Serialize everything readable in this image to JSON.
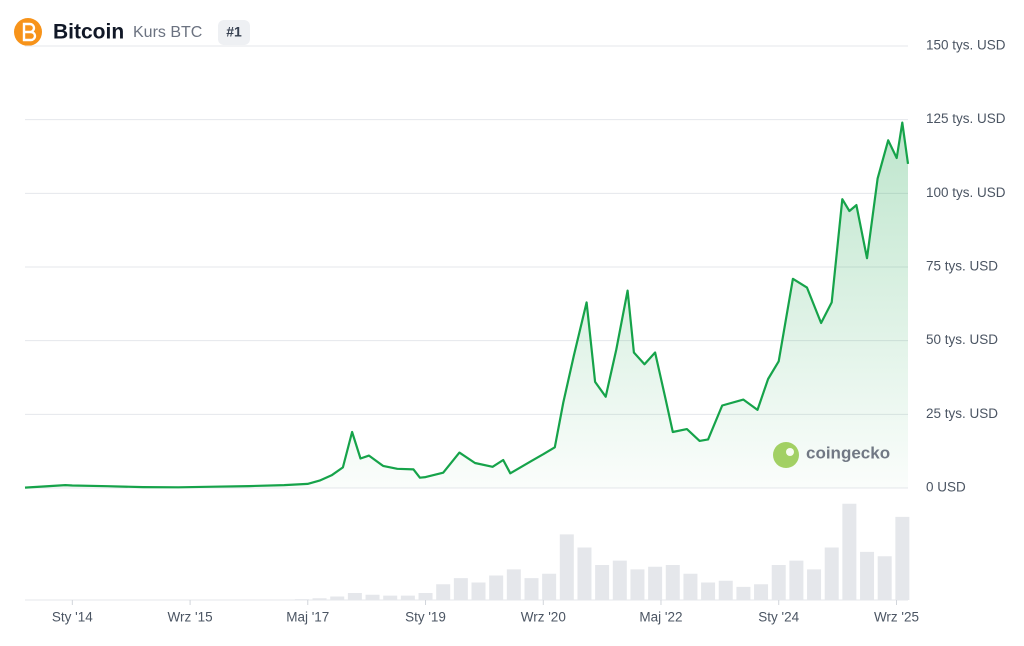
{
  "header": {
    "title": "Bitcoin",
    "subtitle": "Kurs BTC",
    "rank": "#1"
  },
  "watermark": "coingecko",
  "chart_data": [
    {
      "type": "area",
      "color": "#16a34a",
      "grid": true,
      "x": [
        2013.33,
        2013.9,
        2014.0,
        2014.5,
        2015.0,
        2015.5,
        2016.0,
        2016.5,
        2017.0,
        2017.33,
        2017.5,
        2017.67,
        2017.83,
        2017.96,
        2018.08,
        2018.2,
        2018.4,
        2018.6,
        2018.83,
        2018.92,
        2019.0,
        2019.25,
        2019.48,
        2019.7,
        2019.95,
        2020.1,
        2020.2,
        2020.5,
        2020.67,
        2020.83,
        2020.95,
        2021.1,
        2021.28,
        2021.4,
        2021.55,
        2021.7,
        2021.86,
        2021.95,
        2022.1,
        2022.25,
        2022.4,
        2022.5,
        2022.7,
        2022.88,
        2023.0,
        2023.2,
        2023.5,
        2023.7,
        2023.85,
        2024.0,
        2024.2,
        2024.4,
        2024.6,
        2024.75,
        2024.9,
        2025.0,
        2025.1,
        2025.25,
        2025.4,
        2025.55,
        2025.67,
        2025.75,
        2025.83
      ],
      "values": [
        120,
        1000,
        850,
        600,
        300,
        250,
        430,
        650,
        1000,
        1400,
        2500,
        4300,
        7000,
        19000,
        10000,
        11000,
        7500,
        6500,
        6300,
        3500,
        3700,
        5200,
        12000,
        8500,
        7200,
        9500,
        5000,
        9200,
        11500,
        13800,
        29000,
        45000,
        63000,
        36000,
        31000,
        47000,
        67000,
        46000,
        42000,
        46000,
        30000,
        19000,
        20000,
        16000,
        16500,
        28000,
        30000,
        26500,
        37000,
        43000,
        71000,
        68000,
        56000,
        63000,
        98000,
        94000,
        96000,
        78000,
        105000,
        118000,
        112000,
        124000,
        110000
      ],
      "xlim": [
        2013.33,
        2025.83
      ],
      "xticks": [
        {
          "value": 2014.0,
          "label": "Sty '14"
        },
        {
          "value": 2015.667,
          "label": "Wrz '15"
        },
        {
          "value": 2017.333,
          "label": "Maj '17"
        },
        {
          "value": 2019.0,
          "label": "Sty '19"
        },
        {
          "value": 2020.667,
          "label": "Wrz '20"
        },
        {
          "value": 2022.333,
          "label": "Maj '22"
        },
        {
          "value": 2024.0,
          "label": "Sty '24"
        },
        {
          "value": 2025.667,
          "label": "Wrz '25"
        }
      ],
      "ylim": [
        0,
        150000
      ],
      "yticks": [
        {
          "value": 0,
          "label": "0 USD"
        },
        {
          "value": 25000,
          "label": "25 tys. USD"
        },
        {
          "value": 50000,
          "label": "50 tys. USD"
        },
        {
          "value": 75000,
          "label": "75 tys. USD"
        },
        {
          "value": 100000,
          "label": "100 tys. USD"
        },
        {
          "value": 125000,
          "label": "125 tys. USD"
        },
        {
          "value": 150000,
          "label": "150 tys. USD"
        }
      ]
    },
    {
      "type": "bar",
      "color": "#e5e7eb",
      "x": [
        2014.0,
        2014.25,
        2014.5,
        2014.75,
        2015.0,
        2015.25,
        2015.5,
        2015.75,
        2016.0,
        2016.25,
        2016.5,
        2016.75,
        2017.0,
        2017.25,
        2017.5,
        2017.75,
        2018.0,
        2018.25,
        2018.5,
        2018.75,
        2019.0,
        2019.25,
        2019.5,
        2019.75,
        2020.0,
        2020.25,
        2020.5,
        2020.75,
        2021.0,
        2021.25,
        2021.5,
        2021.75,
        2022.0,
        2022.25,
        2022.5,
        2022.75,
        2023.0,
        2023.25,
        2023.5,
        2023.75,
        2024.0,
        2024.25,
        2024.5,
        2024.75,
        2025.0,
        2025.25,
        2025.5,
        2025.75
      ],
      "values": [
        0.1,
        0.1,
        0.1,
        0.1,
        0.1,
        0.1,
        0.1,
        0.1,
        0.1,
        0.2,
        0.3,
        0.3,
        0.5,
        1,
        2,
        4,
        8,
        6,
        5,
        5,
        8,
        18,
        25,
        20,
        28,
        35,
        25,
        30,
        75,
        60,
        40,
        45,
        35,
        38,
        40,
        30,
        20,
        22,
        15,
        18,
        40,
        45,
        35,
        60,
        110,
        55,
        50,
        95
      ],
      "ylim": [
        0,
        120
      ]
    }
  ]
}
